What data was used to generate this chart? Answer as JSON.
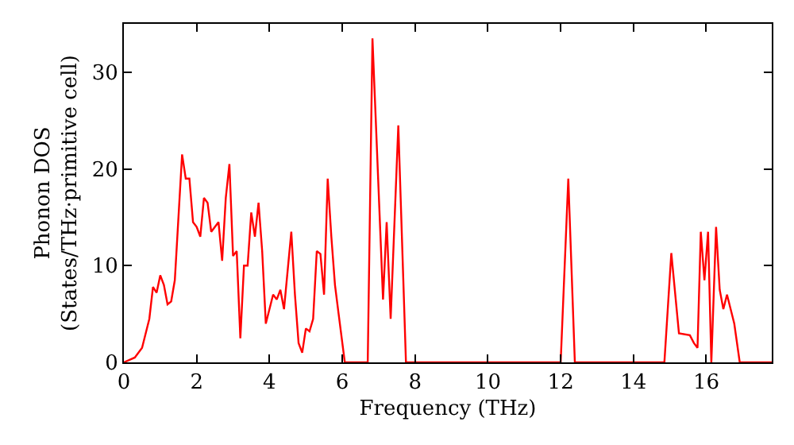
{
  "chart_data": {
    "type": "line",
    "xlabel": "Frequency (THz)",
    "ylabel": "Phonon DOS\n(States/THz·primitive cell)",
    "x": [
      0,
      0.3,
      0.5,
      0.7,
      0.8,
      0.9,
      1.0,
      1.1,
      1.2,
      1.3,
      1.4,
      1.6,
      1.7,
      1.8,
      1.9,
      2.0,
      2.1,
      2.2,
      2.3,
      2.4,
      2.6,
      2.7,
      2.8,
      2.9,
      3.0,
      3.1,
      3.2,
      3.3,
      3.4,
      3.5,
      3.6,
      3.7,
      3.8,
      3.9,
      4.0,
      4.1,
      4.2,
      4.3,
      4.4,
      4.6,
      4.7,
      4.8,
      4.9,
      5.0,
      5.1,
      5.2,
      5.3,
      5.4,
      5.5,
      5.6,
      5.7,
      5.8,
      5.9,
      6.07,
      6.7,
      6.83,
      7.12,
      7.22,
      7.33,
      7.54,
      7.75,
      12.0,
      12.21,
      12.39,
      14.85,
      15.04,
      15.25,
      15.55,
      15.66,
      15.76,
      15.85,
      15.95,
      16.05,
      16.14,
      16.27,
      16.37,
      16.47,
      16.57,
      16.77,
      16.92,
      17.8
    ],
    "series": [
      {
        "color": "#ff0000",
        "values": [
          0,
          0.5,
          1.5,
          4.5,
          7.8,
          7.2,
          9,
          8,
          6,
          6.3,
          8.5,
          21.5,
          19,
          19,
          14.5,
          14,
          13,
          17,
          16.5,
          13.5,
          14.5,
          10.5,
          17,
          20.5,
          11,
          11.5,
          2.5,
          10,
          10,
          15.5,
          13,
          16.5,
          11.5,
          4,
          5.5,
          7,
          6.5,
          7.5,
          5.5,
          13.5,
          7,
          2,
          1,
          3.5,
          3.2,
          4.5,
          11.5,
          11.2,
          7,
          19,
          13,
          8,
          5,
          0,
          0,
          33.5,
          6.5,
          14.5,
          4.5,
          24.5,
          0,
          0,
          19,
          0,
          0,
          11.3,
          3,
          2.8,
          2,
          1.5,
          13.5,
          8.5,
          13.5,
          0,
          14,
          7.5,
          5.5,
          7,
          4,
          0,
          0
        ]
      }
    ],
    "xlim": [
      0,
      17.8
    ],
    "ylim": [
      0,
      35
    ],
    "xticks": [
      0,
      2,
      4,
      6,
      8,
      10,
      12,
      14,
      16
    ],
    "yticks": [
      0,
      10,
      20,
      30
    ],
    "marker": "none",
    "line_style": "solid"
  }
}
